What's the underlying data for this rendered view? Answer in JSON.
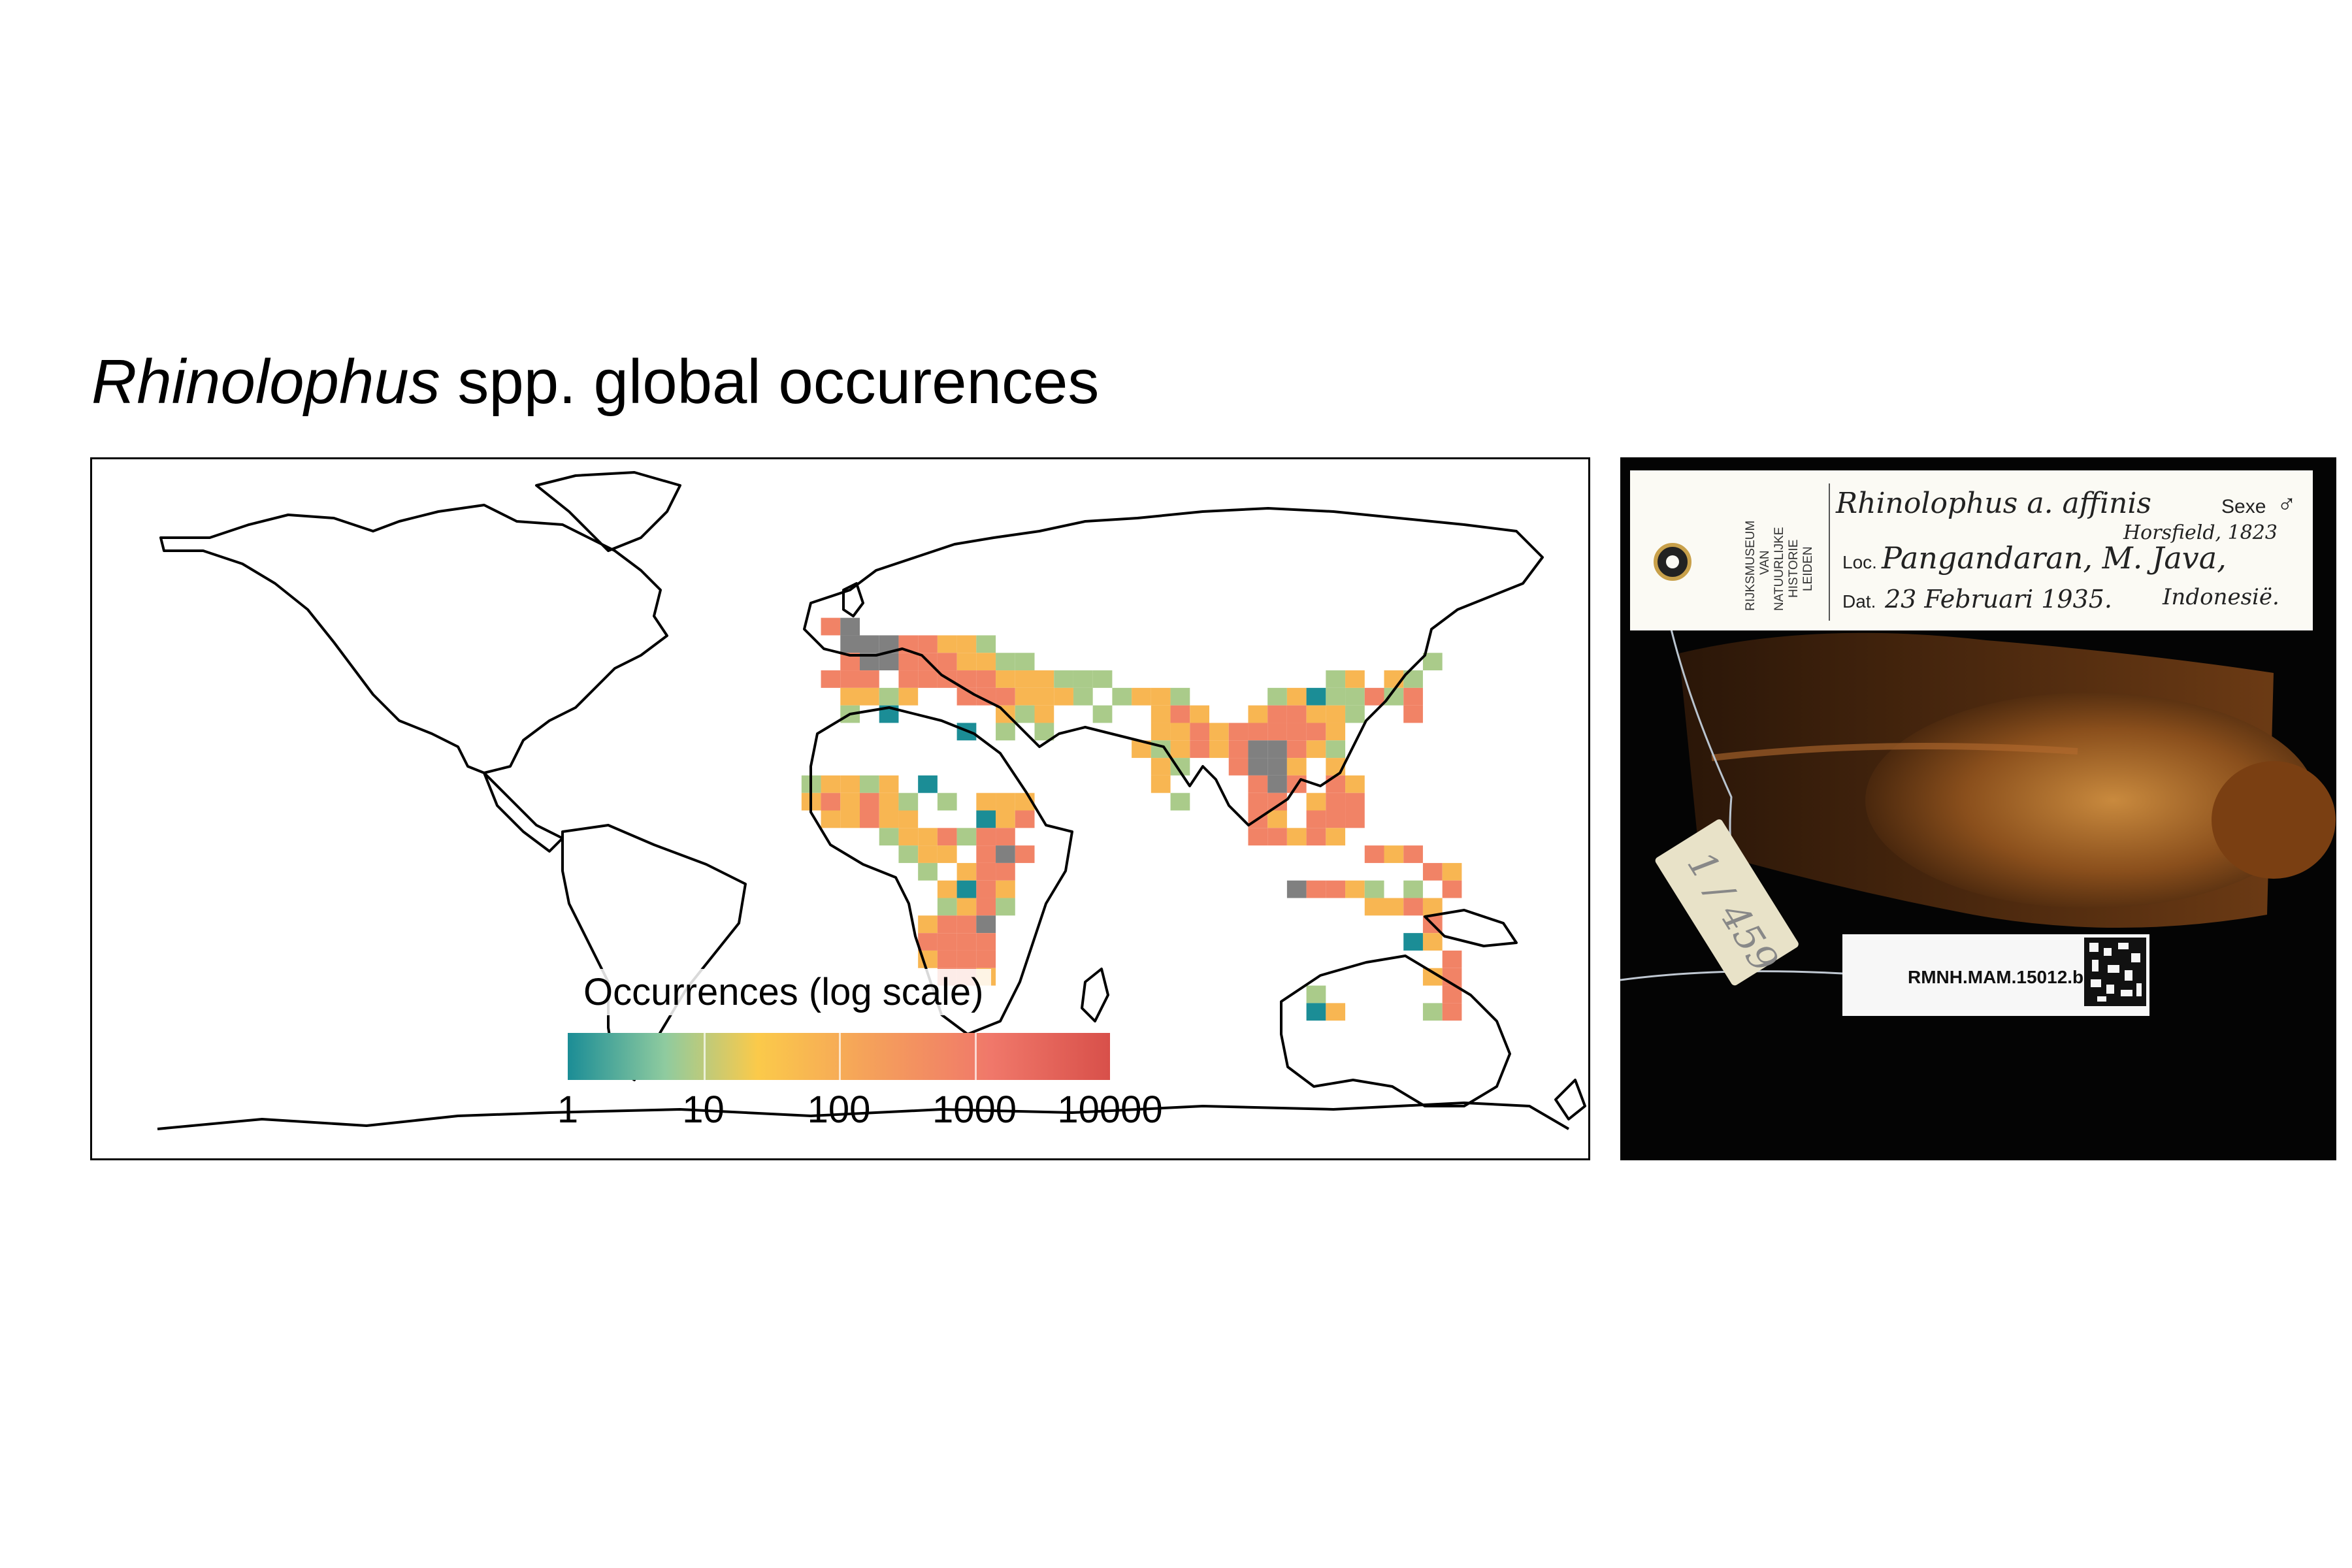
{
  "figure": {
    "title_italic": "Rhinolophus",
    "title_rest": " spp. global occurences"
  },
  "chart_data": {
    "type": "heatmap",
    "title": "Rhinolophus spp. global occurences",
    "projection": "world equirectangular",
    "region": "Old World (Europe, Africa, Asia, Australia)",
    "legend": {
      "title": "Occurrences (log scale)",
      "scale": "log10",
      "range": [
        1,
        10000
      ],
      "ticks": [
        "1",
        "10",
        "100",
        "1000",
        "10000"
      ],
      "palette": [
        "#1b8d96",
        "#8fcb9f",
        "#fbca4a",
        "#f5a25a",
        "#f0786a",
        "#d8504a"
      ],
      "position": "bottom-center"
    },
    "grid_cells": [
      [
        -10,
        52,
        1000
      ],
      [
        -5,
        52,
        10000
      ],
      [
        -5,
        48,
        10000
      ],
      [
        0,
        48,
        10000
      ],
      [
        5,
        48,
        10000
      ],
      [
        10,
        48,
        1000
      ],
      [
        15,
        48,
        1000
      ],
      [
        20,
        48,
        100
      ],
      [
        25,
        48,
        100
      ],
      [
        30,
        48,
        10
      ],
      [
        -5,
        44,
        1000
      ],
      [
        0,
        44,
        10000
      ],
      [
        5,
        44,
        10000
      ],
      [
        10,
        44,
        1000
      ],
      [
        15,
        44,
        1000
      ],
      [
        20,
        44,
        1000
      ],
      [
        25,
        44,
        100
      ],
      [
        30,
        44,
        100
      ],
      [
        35,
        44,
        10
      ],
      [
        40,
        44,
        10
      ],
      [
        -10,
        40,
        1000
      ],
      [
        -5,
        40,
        1000
      ],
      [
        0,
        40,
        1000
      ],
      [
        10,
        40,
        1000
      ],
      [
        15,
        40,
        1000
      ],
      [
        20,
        40,
        1000
      ],
      [
        25,
        40,
        1000
      ],
      [
        30,
        40,
        1000
      ],
      [
        35,
        40,
        100
      ],
      [
        40,
        40,
        100
      ],
      [
        45,
        40,
        100
      ],
      [
        50,
        40,
        10
      ],
      [
        55,
        40,
        10
      ],
      [
        60,
        40,
        10
      ],
      [
        -5,
        36,
        100
      ],
      [
        0,
        36,
        100
      ],
      [
        5,
        36,
        10
      ],
      [
        10,
        36,
        100
      ],
      [
        25,
        36,
        1000
      ],
      [
        30,
        36,
        1000
      ],
      [
        35,
        36,
        1000
      ],
      [
        40,
        36,
        100
      ],
      [
        45,
        36,
        100
      ],
      [
        50,
        36,
        100
      ],
      [
        55,
        36,
        10
      ],
      [
        65,
        36,
        10
      ],
      [
        70,
        36,
        100
      ],
      [
        75,
        36,
        100
      ],
      [
        80,
        36,
        10
      ],
      [
        -5,
        32,
        10
      ],
      [
        5,
        32,
        1
      ],
      [
        35,
        32,
        100
      ],
      [
        40,
        32,
        10
      ],
      [
        45,
        32,
        100
      ],
      [
        60,
        32,
        10
      ],
      [
        75,
        32,
        100
      ],
      [
        80,
        32,
        1000
      ],
      [
        85,
        32,
        100
      ],
      [
        105,
        36,
        10
      ],
      [
        110,
        36,
        100
      ],
      [
        115,
        36,
        1
      ],
      [
        120,
        36,
        10
      ],
      [
        125,
        36,
        10
      ],
      [
        130,
        36,
        1000
      ],
      [
        100,
        32,
        100
      ],
      [
        105,
        32,
        1000
      ],
      [
        110,
        32,
        1000
      ],
      [
        115,
        32,
        100
      ],
      [
        120,
        32,
        100
      ],
      [
        125,
        32,
        10
      ],
      [
        135,
        40,
        100
      ],
      [
        140,
        40,
        10
      ],
      [
        75,
        28,
        100
      ],
      [
        80,
        28,
        100
      ],
      [
        85,
        28,
        1000
      ],
      [
        90,
        28,
        100
      ],
      [
        95,
        28,
        1000
      ],
      [
        100,
        28,
        1000
      ],
      [
        105,
        28,
        1000
      ],
      [
        110,
        28,
        1000
      ],
      [
        115,
        28,
        1000
      ],
      [
        120,
        28,
        100
      ],
      [
        25,
        28,
        1
      ],
      [
        35,
        28,
        10
      ],
      [
        45,
        28,
        10
      ],
      [
        70,
        24,
        100
      ],
      [
        75,
        24,
        10
      ],
      [
        80,
        24,
        100
      ],
      [
        85,
        24,
        1000
      ],
      [
        90,
        24,
        100
      ],
      [
        95,
        24,
        1000
      ],
      [
        100,
        24,
        10000
      ],
      [
        105,
        24,
        10000
      ],
      [
        110,
        24,
        1000
      ],
      [
        115,
        24,
        100
      ],
      [
        120,
        24,
        10
      ],
      [
        75,
        20,
        100
      ],
      [
        80,
        20,
        10
      ],
      [
        95,
        20,
        1000
      ],
      [
        100,
        20,
        10000
      ],
      [
        105,
        20,
        10000
      ],
      [
        110,
        20,
        100
      ],
      [
        120,
        20,
        100
      ],
      [
        75,
        16,
        100
      ],
      [
        100,
        16,
        1000
      ],
      [
        105,
        16,
        10000
      ],
      [
        110,
        16,
        1000
      ],
      [
        120,
        16,
        1000
      ],
      [
        125,
        16,
        100
      ],
      [
        80,
        12,
        10
      ],
      [
        100,
        12,
        1000
      ],
      [
        105,
        12,
        1000
      ],
      [
        115,
        12,
        100
      ],
      [
        120,
        12,
        1000
      ],
      [
        125,
        12,
        1000
      ],
      [
        100,
        8,
        1000
      ],
      [
        105,
        8,
        100
      ],
      [
        115,
        8,
        1000
      ],
      [
        120,
        8,
        1000
      ],
      [
        125,
        8,
        1000
      ],
      [
        100,
        4,
        1000
      ],
      [
        105,
        4,
        1000
      ],
      [
        110,
        4,
        100
      ],
      [
        115,
        4,
        1000
      ],
      [
        120,
        4,
        100
      ],
      [
        -15,
        16,
        10
      ],
      [
        -10,
        16,
        100
      ],
      [
        -5,
        16,
        100
      ],
      [
        0,
        16,
        10
      ],
      [
        5,
        16,
        100
      ],
      [
        15,
        16,
        1
      ],
      [
        -15,
        12,
        100
      ],
      [
        -10,
        12,
        1000
      ],
      [
        -5,
        12,
        100
      ],
      [
        0,
        12,
        1000
      ],
      [
        5,
        12,
        100
      ],
      [
        10,
        12,
        10
      ],
      [
        20,
        12,
        10
      ],
      [
        30,
        12,
        100
      ],
      [
        35,
        12,
        100
      ],
      [
        40,
        12,
        100
      ],
      [
        -10,
        8,
        100
      ],
      [
        -5,
        8,
        100
      ],
      [
        0,
        8,
        1000
      ],
      [
        5,
        8,
        100
      ],
      [
        10,
        8,
        100
      ],
      [
        30,
        8,
        1
      ],
      [
        35,
        8,
        100
      ],
      [
        40,
        8,
        1000
      ],
      [
        5,
        4,
        10
      ],
      [
        10,
        4,
        100
      ],
      [
        15,
        4,
        100
      ],
      [
        20,
        4,
        1000
      ],
      [
        25,
        4,
        10
      ],
      [
        30,
        4,
        1000
      ],
      [
        35,
        4,
        1000
      ],
      [
        10,
        0,
        10
      ],
      [
        15,
        0,
        100
      ],
      [
        20,
        0,
        100
      ],
      [
        30,
        0,
        1000
      ],
      [
        35,
        0,
        10000
      ],
      [
        40,
        0,
        1000
      ],
      [
        15,
        -4,
        10
      ],
      [
        25,
        -4,
        100
      ],
      [
        30,
        -4,
        1000
      ],
      [
        35,
        -4,
        1000
      ],
      [
        20,
        -8,
        100
      ],
      [
        25,
        -8,
        1
      ],
      [
        30,
        -8,
        1000
      ],
      [
        35,
        -8,
        100
      ],
      [
        20,
        -12,
        10
      ],
      [
        25,
        -12,
        100
      ],
      [
        30,
        -12,
        1000
      ],
      [
        35,
        -12,
        10
      ],
      [
        15,
        -16,
        100
      ],
      [
        20,
        -16,
        1000
      ],
      [
        25,
        -16,
        1000
      ],
      [
        30,
        -16,
        10000
      ],
      [
        15,
        -20,
        1000
      ],
      [
        20,
        -20,
        1000
      ],
      [
        25,
        -20,
        1000
      ],
      [
        30,
        -20,
        1000
      ],
      [
        15,
        -24,
        100
      ],
      [
        20,
        -24,
        1000
      ],
      [
        25,
        -24,
        1000
      ],
      [
        30,
        -24,
        1000
      ],
      [
        20,
        -28,
        1000
      ],
      [
        25,
        -28,
        1000
      ],
      [
        30,
        -28,
        100
      ],
      [
        130,
        0,
        1000
      ],
      [
        135,
        0,
        100
      ],
      [
        140,
        0,
        1000
      ],
      [
        145,
        -4,
        1000
      ],
      [
        150,
        -4,
        100
      ],
      [
        110,
        -8,
        10000
      ],
      [
        115,
        -8,
        1000
      ],
      [
        120,
        -8,
        1000
      ],
      [
        125,
        -8,
        100
      ],
      [
        130,
        -8,
        10
      ],
      [
        140,
        -8,
        10
      ],
      [
        150,
        -8,
        1000
      ],
      [
        130,
        -12,
        100
      ],
      [
        135,
        -12,
        100
      ],
      [
        140,
        -12,
        1000
      ],
      [
        145,
        -12,
        100
      ],
      [
        145,
        -16,
        1000
      ],
      [
        145,
        -20,
        100
      ],
      [
        140,
        -20,
        1
      ],
      [
        150,
        -24,
        1000
      ],
      [
        145,
        -28,
        100
      ],
      [
        150,
        -28,
        1000
      ],
      [
        150,
        -32,
        1000
      ],
      [
        145,
        -36,
        10
      ],
      [
        150,
        -36,
        1000
      ],
      [
        115,
        -32,
        10
      ],
      [
        115,
        -36,
        1
      ],
      [
        120,
        -36,
        100
      ],
      [
        140,
        32,
        1000
      ],
      [
        135,
        36,
        10
      ],
      [
        140,
        36,
        1000
      ],
      [
        145,
        44,
        10
      ],
      [
        120,
        40,
        10
      ],
      [
        125,
        40,
        100
      ]
    ]
  },
  "specimen": {
    "museum_lines": [
      "RIJKSMUSEUM",
      "VAN",
      "NATUURLIJKE",
      "HISTORIE",
      "LEIDEN"
    ],
    "species": "Rhinolophus a. affinis",
    "sex_label": "Sexe",
    "sex_symbol": "♂",
    "author": "Horsfield, 1823",
    "loc_label": "Loc.",
    "locality": "Pangandaran, M. Java,",
    "date_label": "Dat.",
    "date": "23 Februari 1935.",
    "country": "Indonesië.",
    "tag_number": "1 / 459",
    "catalog_number": "RMNH.MAM.15012.b"
  }
}
